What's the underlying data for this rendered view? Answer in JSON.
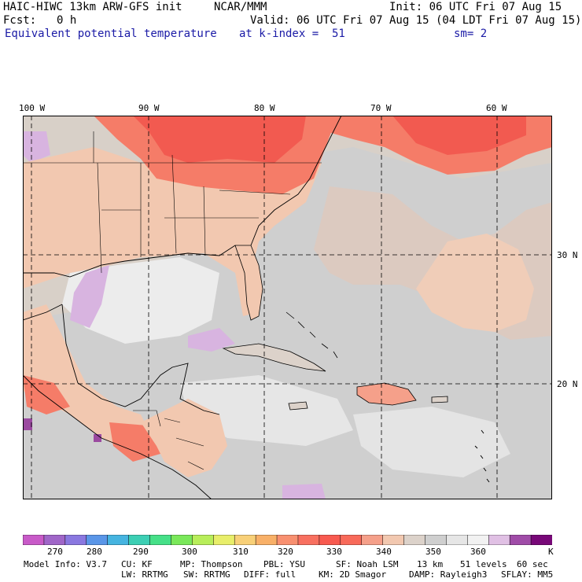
{
  "header": {
    "model": "HAIC-HIWC 13km ARW-GFS init",
    "org": "NCAR/MMM",
    "init": "Init: 06 UTC Fri 07 Aug 15",
    "fcst_label": "Fcst:",
    "fcst_value": "0 h",
    "valid": "Valid: 06 UTC Fri 07 Aug 15 (04 LDT Fri 07 Aug 15)",
    "field": "Equivalent potential temperature",
    "level": "at k-index =  51",
    "smooth": "sm= 2"
  },
  "map": {
    "lon_labels": [
      "100 W",
      "90 W",
      "80 W",
      "70 W",
      "60 W"
    ],
    "lat_labels": [
      "30 N",
      "20 N"
    ],
    "colors": {
      "background": "#d8d0c8",
      "ocean_gray": "#cfcfcf",
      "light": "#ececec",
      "tan": "#f2c8b0",
      "salmon": "#f5a08a",
      "warm": "#f57c68",
      "red": "#f25a50",
      "lilac": "#d8b4e0",
      "purple": "#9b4aa0",
      "border": "#000000"
    }
  },
  "colorbar": {
    "colors": [
      "#c85ac8",
      "#a066c8",
      "#8a78e0",
      "#5a96e8",
      "#46b4e0",
      "#3ccfb4",
      "#46e088",
      "#7ae85a",
      "#b8ee5a",
      "#e8ee6a",
      "#f8d078",
      "#f8b068",
      "#f89070",
      "#f87060",
      "#f85a50",
      "#f86a5a",
      "#f5a08a",
      "#f2c8b0",
      "#dcd2ca",
      "#cfcfcf",
      "#e6e6e6",
      "#f2f2f2",
      "#e0c0e4",
      "#a04ca8",
      "#780878"
    ],
    "ticks": [
      "270",
      "280",
      "290",
      "300",
      "310",
      "320",
      "330",
      "340",
      "350",
      "360"
    ],
    "unit": "K"
  },
  "footer": {
    "line1": [
      "Model Info: V3.7",
      "CU: KF",
      "MP: Thompson",
      "PBL: YSU",
      "SF: Noah LSM",
      "13 km",
      "51 levels",
      "60 sec"
    ],
    "line2": [
      "LW: RRTMG",
      "SW: RRTMG",
      "DIFF: full",
      "KM: 2D Smagor",
      "DAMP: Rayleigh3",
      "SFLAY: MM5"
    ]
  }
}
